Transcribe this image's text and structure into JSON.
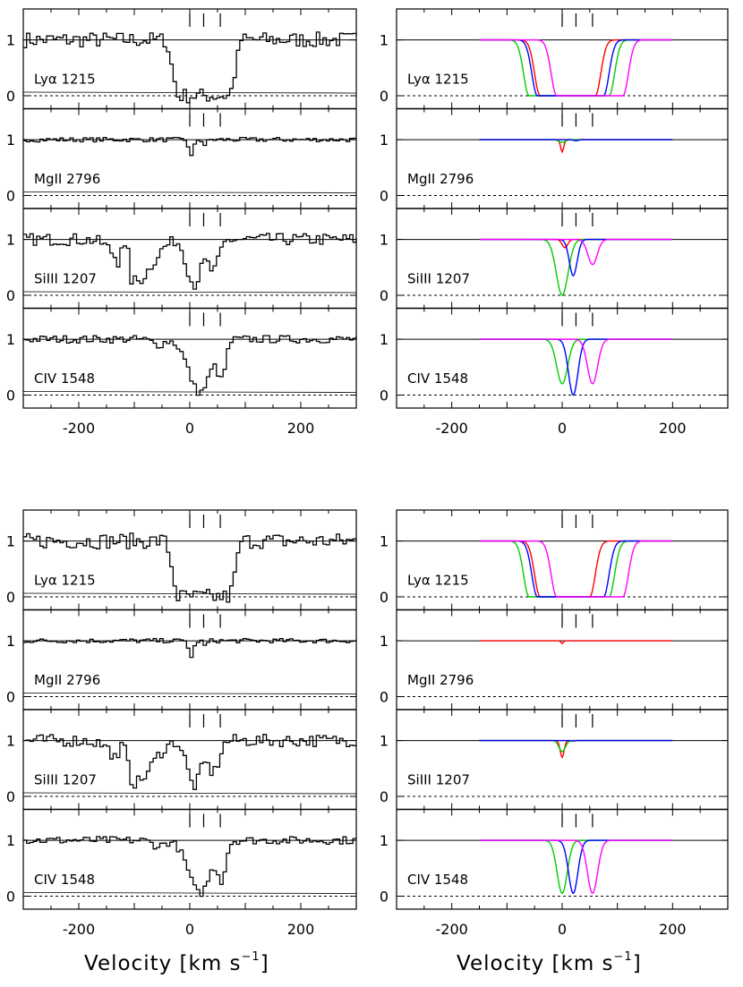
{
  "figure": {
    "x_axis_title": "Velocity [km s",
    "x_axis_unit_exp": "−1",
    "x_axis_title_end": "]"
  },
  "chart_data": {
    "type": "line",
    "x_range": [
      -300,
      300
    ],
    "x_ticks": [
      -200,
      0,
      200
    ],
    "y_ticks": [
      0,
      1
    ],
    "component_markers": [
      0,
      25,
      55
    ],
    "colors": {
      "frame": "#000000",
      "red": "#ff0000",
      "green": "#00cc00",
      "blue": "#0000ff",
      "magenta": "#ff00ff"
    },
    "blocks": [
      {
        "observed": {
          "panels": [
            {
              "label": "Lyα 1215",
              "kind": "lya",
              "noise": 0.14
            },
            {
              "label": "MgII 2796",
              "kind": "mg",
              "noise": 0.04
            },
            {
              "label": "SiIII 1207",
              "kind": "si",
              "noise": 0.11
            },
            {
              "label": "CIV 1548",
              "kind": "civ",
              "noise": 0.07
            }
          ]
        },
        "model": {
          "panels": [
            {
              "label": "Lyα 1215",
              "profiles": [
                {
                  "color": "red",
                  "min": 0.0,
                  "depth_lo": -40,
                  "depth_hi": 60
                },
                {
                  "color": "green",
                  "min": 0.0,
                  "depth_lo": -60,
                  "depth_hi": 85
                },
                {
                  "color": "blue",
                  "min": 0.0,
                  "depth_lo": -45,
                  "depth_hi": 75
                },
                {
                  "color": "magenta",
                  "min": 0.0,
                  "depth_lo": -10,
                  "depth_hi": 110
                }
              ]
            },
            {
              "label": "MgII 2796",
              "profiles": [
                {
                  "color": "red",
                  "min": 0.78,
                  "center": 0,
                  "width": 4
                },
                {
                  "color": "green",
                  "min": 0.95,
                  "center": 0,
                  "width": 8
                },
                {
                  "color": "blue",
                  "min": 0.98,
                  "center": 25,
                  "width": 6
                }
              ]
            },
            {
              "label": "SiIII 1207",
              "profiles": [
                {
                  "color": "red",
                  "min": 0.85,
                  "center": 5,
                  "width": 7
                },
                {
                  "color": "green",
                  "min": 0.0,
                  "center": 0,
                  "width": 15
                },
                {
                  "color": "blue",
                  "min": 0.35,
                  "center": 20,
                  "width": 10
                },
                {
                  "color": "magenta",
                  "min": 0.55,
                  "center": 55,
                  "width": 12
                }
              ]
            },
            {
              "label": "CIV 1548",
              "profiles": [
                {
                  "color": "green",
                  "min": 0.2,
                  "center": 0,
                  "width": 14
                },
                {
                  "color": "blue",
                  "min": 0.0,
                  "center": 20,
                  "width": 12
                },
                {
                  "color": "magenta",
                  "min": 0.2,
                  "center": 55,
                  "width": 13
                }
              ]
            }
          ]
        }
      },
      {
        "observed": {
          "panels": [
            {
              "label": "Lyα 1215",
              "kind": "lya",
              "noise": 0.14
            },
            {
              "label": "MgII 2796",
              "kind": "mg",
              "noise": 0.04
            },
            {
              "label": "SiIII 1207",
              "kind": "si2",
              "noise": 0.11
            },
            {
              "label": "CIV 1548",
              "kind": "civ",
              "noise": 0.07
            }
          ]
        },
        "model": {
          "panels": [
            {
              "label": "Lyα 1215",
              "profiles": [
                {
                  "color": "red",
                  "min": 0.0,
                  "depth_lo": -40,
                  "depth_hi": 50
                },
                {
                  "color": "green",
                  "min": 0.0,
                  "depth_lo": -60,
                  "depth_hi": 85
                },
                {
                  "color": "blue",
                  "min": 0.0,
                  "depth_lo": -45,
                  "depth_hi": 75
                },
                {
                  "color": "magenta",
                  "min": 0.0,
                  "depth_lo": -10,
                  "depth_hi": 110
                }
              ]
            },
            {
              "label": "MgII 2796",
              "profiles": [
                {
                  "color": "red",
                  "min": 0.95,
                  "center": 0,
                  "width": 3
                }
              ]
            },
            {
              "label": "SiIII 1207",
              "profiles": [
                {
                  "color": "red",
                  "min": 0.7,
                  "center": 0,
                  "width": 5
                },
                {
                  "color": "green",
                  "min": 0.8,
                  "center": 0,
                  "width": 8
                },
                {
                  "color": "blue",
                  "min": 0.99,
                  "center": 20,
                  "width": 5
                }
              ]
            },
            {
              "label": "CIV 1548",
              "profiles": [
                {
                  "color": "green",
                  "min": 0.05,
                  "center": 0,
                  "width": 13
                },
                {
                  "color": "blue",
                  "min": 0.05,
                  "center": 20,
                  "width": 12
                },
                {
                  "color": "magenta",
                  "min": 0.05,
                  "center": 55,
                  "width": 13
                }
              ]
            }
          ]
        }
      }
    ]
  }
}
